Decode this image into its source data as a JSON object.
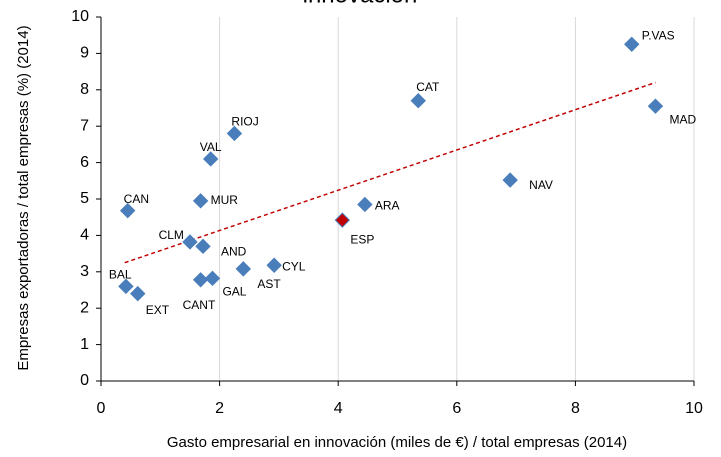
{
  "chart_data": {
    "type": "scatter",
    "title": "innovación",
    "x_label": "Gasto  empresarial en innovación (miles de €)  / total empresas (2014)",
    "y_label": "Empresas exportadoras / total empresas (%) (2014)",
    "xlim": [
      0,
      10
    ],
    "xticks": [
      0,
      2,
      4,
      6,
      8,
      10
    ],
    "ylim": [
      0,
      10
    ],
    "yticks": [
      0,
      1,
      2,
      3,
      4,
      5,
      6,
      7,
      8,
      9,
      10
    ],
    "grid": "x",
    "color": "#4a7ebb",
    "labels": [
      "P.VAS",
      "CAT",
      "MAD",
      "RIOJ",
      "VAL",
      "NAV",
      "CAN",
      "MUR",
      "ARA",
      "ESP",
      "CLM",
      "AND",
      "CYL",
      "AST",
      "GAL",
      "CANT",
      "BAL",
      "EXT"
    ],
    "x": [
      8.95,
      5.35,
      9.35,
      2.25,
      1.85,
      6.9,
      0.45,
      1.68,
      4.45,
      4.07,
      1.5,
      1.72,
      2.92,
      2.4,
      1.88,
      1.68,
      0.42,
      0.62
    ],
    "values": [
      9.25,
      7.7,
      7.55,
      6.8,
      6.1,
      5.52,
      4.68,
      4.95,
      4.85,
      4.42,
      3.82,
      3.7,
      3.18,
      3.08,
      2.82,
      2.78,
      2.6,
      2.4
    ],
    "point_colors": [
      "#4a7ebb",
      "#4a7ebb",
      "#4a7ebb",
      "#4a7ebb",
      "#4a7ebb",
      "#4a7ebb",
      "#4a7ebb",
      "#4a7ebb",
      "#4a7ebb",
      "#c00000",
      "#4a7ebb",
      "#4a7ebb",
      "#4a7ebb",
      "#4a7ebb",
      "#4a7ebb",
      "#4a7ebb",
      "#4a7ebb",
      "#4a7ebb"
    ],
    "trendline": {
      "x": [
        0.4,
        9.35
      ],
      "y": [
        3.25,
        8.2
      ],
      "color": "#c00000"
    }
  }
}
